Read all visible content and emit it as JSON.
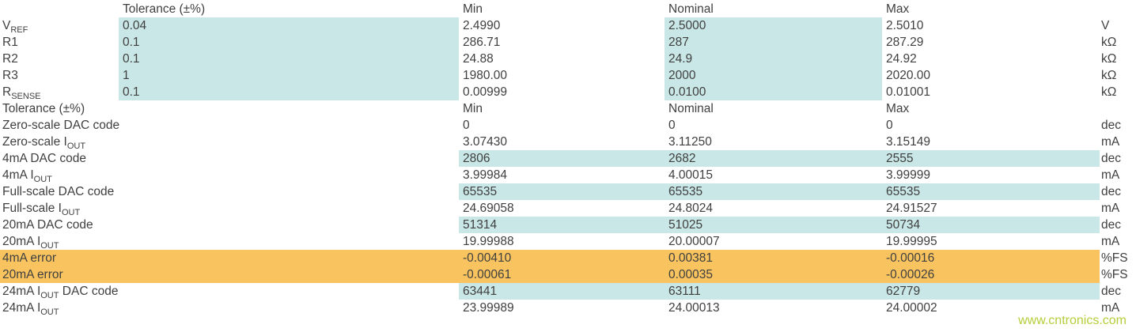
{
  "colors": {
    "teal": "#c9e7e6",
    "orange": "#f9c45f",
    "text": "#3f3f3f",
    "watermark": "#b5ce3b"
  },
  "header1": {
    "tolerance": "Tolerance (±%)",
    "min": "Min",
    "nominal": "Nominal",
    "max": "Max"
  },
  "header2": {
    "label": "Tolerance (±%)",
    "min": "Min",
    "nominal": "Nominal",
    "max": "Max"
  },
  "section1_rows": [
    {
      "label": "V",
      "label_sub": "REF",
      "tolerance": "0.04",
      "min": "2.4990",
      "nominal": "2.5000",
      "max": "2.5010",
      "unit": "V",
      "highlight": "tolerance-and-nominal"
    },
    {
      "label": "R1",
      "label_sub": "",
      "tolerance": "0.1",
      "min": "286.71",
      "nominal": "287",
      "max": "287.29",
      "unit": "kΩ",
      "highlight": "tolerance-and-nominal"
    },
    {
      "label": "R2",
      "label_sub": "",
      "tolerance": "0.1",
      "min": "24.88",
      "nominal": "24.9",
      "max": "24.92",
      "unit": "kΩ",
      "highlight": "tolerance-and-nominal"
    },
    {
      "label": "R3",
      "label_sub": "",
      "tolerance": "1",
      "min": "1980.00",
      "nominal": "2000",
      "max": "2020.00",
      "unit": "kΩ",
      "highlight": "tolerance-and-nominal"
    },
    {
      "label": "R",
      "label_sub": "SENSE",
      "tolerance": "0.1",
      "min": "0.00999",
      "nominal": "0.0100",
      "max": "0.01001",
      "unit": "kΩ",
      "highlight": "tolerance-and-nominal"
    }
  ],
  "section2_rows": [
    {
      "label_pre": "Zero-scale DAC code",
      "label_sub": "",
      "label_post": "",
      "min": "0",
      "nominal": "0",
      "max": "0",
      "unit": "dec",
      "highlight": "none"
    },
    {
      "label_pre": "Zero-scale I",
      "label_sub": "OUT",
      "label_post": "",
      "min": "3.07430",
      "nominal": "3.11250",
      "max": "3.15149",
      "unit": "mA",
      "highlight": "none"
    },
    {
      "label_pre": "4mA DAC code",
      "label_sub": "",
      "label_post": "",
      "min": "2806",
      "nominal": "2682",
      "max": "2555",
      "unit": "dec",
      "highlight": "teal-values"
    },
    {
      "label_pre": "4mA I",
      "label_sub": "OUT",
      "label_post": "",
      "min": "3.99984",
      "nominal": "4.00015",
      "max": "3.99999",
      "unit": "mA",
      "highlight": "none"
    },
    {
      "label_pre": "Full-scale DAC code",
      "label_sub": "",
      "label_post": "",
      "min": "65535",
      "nominal": "65535",
      "max": "65535",
      "unit": "dec",
      "highlight": "teal-values"
    },
    {
      "label_pre": "Full-scale I",
      "label_sub": "OUT",
      "label_post": "",
      "min": "24.69058",
      "nominal": "24.8024",
      "max": "24.91527",
      "unit": "mA",
      "highlight": "none"
    },
    {
      "label_pre": "20mA DAC code",
      "label_sub": "",
      "label_post": "",
      "min": "51314",
      "nominal": "51025",
      "max": "50734",
      "unit": "dec",
      "highlight": "teal-values"
    },
    {
      "label_pre": "20mA I",
      "label_sub": "OUT",
      "label_post": "",
      "min": "19.99988",
      "nominal": "20.00007",
      "max": "19.99995",
      "unit": "mA",
      "highlight": "none"
    },
    {
      "label_pre": "4mA error",
      "label_sub": "",
      "label_post": "",
      "min": "-0.00410",
      "nominal": "0.00381",
      "max": "-0.00016",
      "unit": "%FS",
      "highlight": "orange-row"
    },
    {
      "label_pre": "20mA error",
      "label_sub": "",
      "label_post": "",
      "min": "-0.00061",
      "nominal": "0.00035",
      "max": "-0.00026",
      "unit": "%FS",
      "highlight": "orange-row"
    },
    {
      "label_pre": "24mA I",
      "label_sub": "OUT",
      "label_post": " DAC code",
      "min": "63441",
      "nominal": "63111",
      "max": "62779",
      "unit": "dec",
      "highlight": "teal-values"
    },
    {
      "label_pre": "24mA I",
      "label_sub": "OUT",
      "label_post": "",
      "min": "23.99989",
      "nominal": "24.00013",
      "max": "24.00002",
      "unit": "mA",
      "highlight": "none"
    }
  ],
  "watermark": "www.cntronics.com"
}
